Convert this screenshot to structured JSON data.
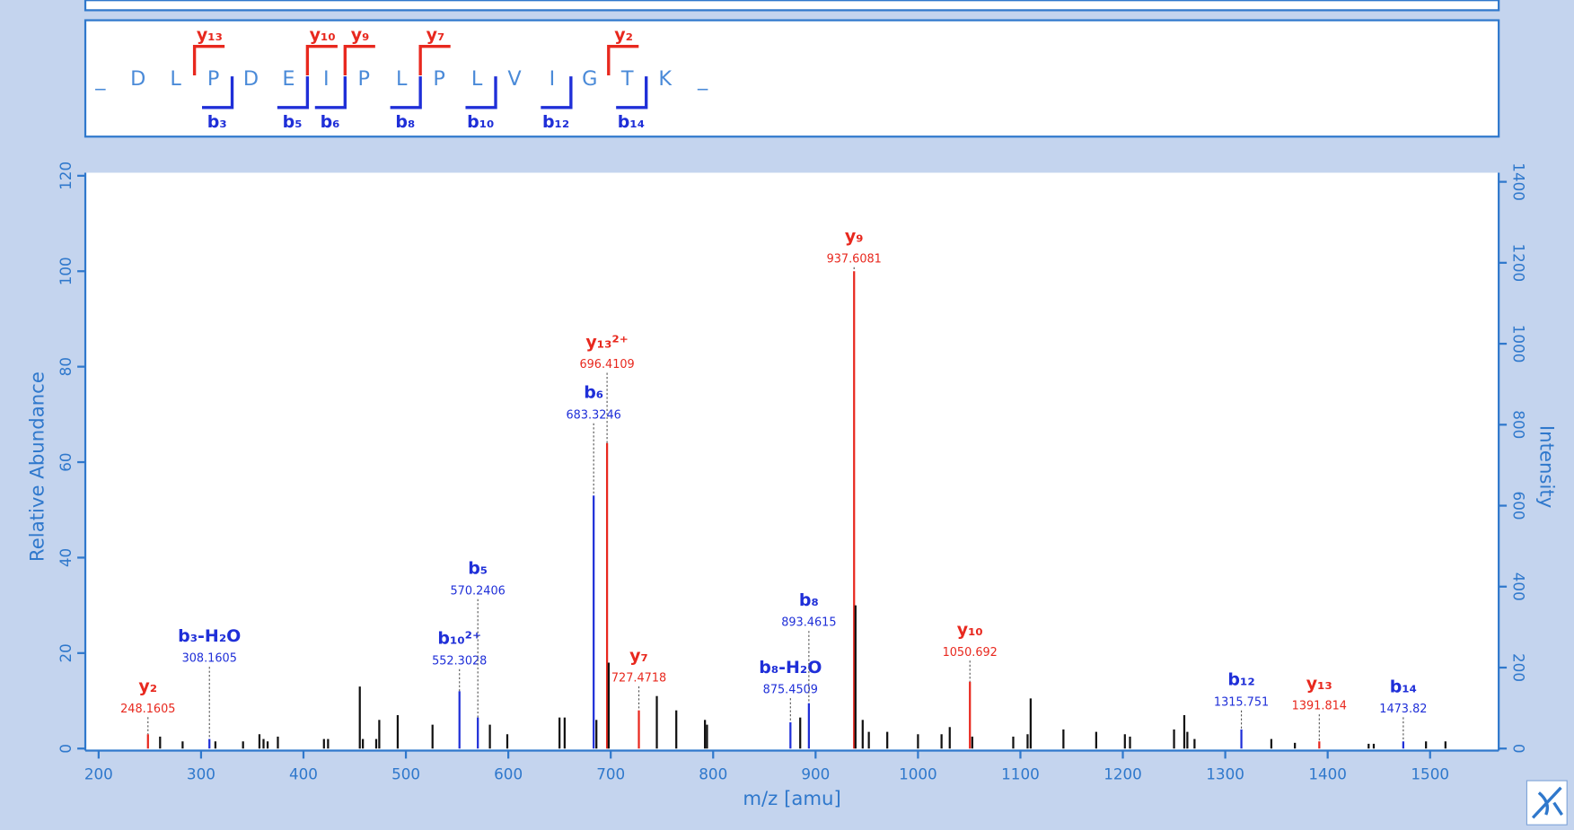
{
  "sequence": {
    "residues": [
      "_",
      "D",
      "L",
      "P",
      "D",
      "E",
      "I",
      "P",
      "L",
      "P",
      "L",
      "V",
      "I",
      "G",
      "T",
      "K",
      "_"
    ],
    "y_ions": [
      null,
      null,
      "y₁₃",
      null,
      null,
      "y₁₀",
      "y₉",
      null,
      "y₇",
      null,
      null,
      null,
      null,
      "y₂",
      null,
      null
    ],
    "b_ions": [
      null,
      null,
      null,
      "b₃",
      null,
      "b₅",
      "b₆",
      null,
      "b₈",
      null,
      "b₁₀",
      null,
      "b₁₂",
      null,
      "b₁₄",
      null
    ],
    "y_color": "#e8281e",
    "b_color": "#1f2fd8"
  },
  "chart_data": {
    "type": "stem",
    "xlabel": "m/z [amu]",
    "ylabel": "Relative Abundance",
    "y2label": "Intensity",
    "x": [
      248.1605,
      260,
      282,
      308.1605,
      314,
      341,
      357,
      361,
      365,
      375,
      420,
      424,
      455,
      458,
      471,
      474,
      492,
      526,
      552.3028,
      570.2406,
      582,
      599,
      650,
      655,
      683.3246,
      686,
      696.4109,
      698,
      727.4718,
      745,
      764,
      792,
      794,
      875.4509,
      885,
      893.4615,
      937.6081,
      939,
      946,
      952,
      970,
      1000,
      1023,
      1031,
      1050.692,
      1053,
      1093,
      1107,
      1110,
      1142,
      1174,
      1202,
      1207,
      1250,
      1260,
      1263,
      1270,
      1315.751,
      1345,
      1368,
      1391.814,
      1440,
      1445,
      1473.82,
      1496,
      1515
    ],
    "values": [
      3,
      2.5,
      1.5,
      2,
      1.5,
      1.5,
      3,
      2,
      1.5,
      2.5,
      2,
      2,
      13,
      2,
      2,
      6,
      7,
      5,
      12,
      6.5,
      5,
      3,
      6.5,
      6.5,
      53,
      6,
      64,
      18,
      8,
      11,
      8,
      6,
      5,
      5.5,
      6.5,
      9.5,
      100,
      30,
      6,
      3.5,
      3.5,
      3,
      3,
      4.5,
      14,
      2.5,
      2.5,
      3,
      10.5,
      4,
      3.5,
      3,
      2.5,
      4,
      7,
      3.5,
      2,
      4,
      2,
      1.2,
      1.5,
      1,
      1,
      1.5,
      1.5,
      1.5
    ],
    "colors": [
      "#e8281e",
      "#111111",
      "#111111",
      "#1f2fd8",
      "#111111",
      "#111111",
      "#111111",
      "#111111",
      "#111111",
      "#111111",
      "#111111",
      "#111111",
      "#111111",
      "#111111",
      "#111111",
      "#111111",
      "#111111",
      "#111111",
      "#1f2fd8",
      "#1f2fd8",
      "#111111",
      "#111111",
      "#111111",
      "#111111",
      "#1f2fd8",
      "#111111",
      "#e8281e",
      "#111111",
      "#e8281e",
      "#111111",
      "#111111",
      "#111111",
      "#111111",
      "#1f2fd8",
      "#111111",
      "#1f2fd8",
      "#e8281e",
      "#111111",
      "#111111",
      "#111111",
      "#111111",
      "#111111",
      "#111111",
      "#111111",
      "#e8281e",
      "#111111",
      "#111111",
      "#111111",
      "#111111",
      "#111111",
      "#111111",
      "#111111",
      "#111111",
      "#111111",
      "#111111",
      "#111111",
      "#111111",
      "#1f2fd8",
      "#111111",
      "#111111",
      "#e8281e",
      "#111111",
      "#111111",
      "#1f2fd8",
      "#111111",
      "#111111"
    ],
    "ion_labels": [
      "y₂",
      null,
      null,
      "b₃-H₂O",
      null,
      null,
      null,
      null,
      null,
      null,
      null,
      null,
      null,
      null,
      null,
      null,
      null,
      null,
      "b₁₀²⁺",
      "b₅",
      null,
      null,
      null,
      null,
      "b₆",
      null,
      "y₁₃²⁺",
      null,
      "y₇",
      null,
      null,
      null,
      null,
      "b₈-H₂O",
      null,
      "b₈",
      "y₉",
      null,
      null,
      null,
      null,
      null,
      null,
      null,
      "y₁₀",
      null,
      null,
      null,
      null,
      null,
      null,
      null,
      null,
      null,
      null,
      null,
      null,
      "b₁₂",
      null,
      null,
      "y₁₃",
      null,
      null,
      "b₁₄",
      null,
      null
    ],
    "mz_labels": [
      "248.1605",
      null,
      null,
      "308.1605",
      null,
      null,
      null,
      null,
      null,
      null,
      null,
      null,
      null,
      null,
      null,
      null,
      null,
      null,
      "552.3028",
      "570.2406",
      null,
      null,
      null,
      null,
      "683.3246",
      null,
      "696.4109",
      null,
      "727.4718",
      null,
      null,
      null,
      null,
      "875.4509",
      null,
      "893.4615",
      "937.6081",
      null,
      null,
      null,
      null,
      null,
      null,
      null,
      "1050.692",
      null,
      null,
      null,
      null,
      null,
      null,
      null,
      null,
      null,
      null,
      null,
      null,
      "1315.751",
      null,
      null,
      "1391.814",
      null,
      null,
      "1473.82",
      null,
      null
    ],
    "xlim": [
      187,
      1567
    ],
    "xticks": [
      200,
      300,
      400,
      500,
      600,
      700,
      800,
      900,
      1000,
      1100,
      1200,
      1300,
      1400,
      1500
    ],
    "ylim": [
      0,
      120
    ],
    "yticks": [
      0,
      20,
      40,
      60,
      80,
      100,
      120
    ],
    "y2lim": [
      0,
      1415
    ],
    "y2ticks": [
      0,
      200,
      400,
      600,
      800,
      1000,
      1200,
      1400
    ],
    "axis_color": "#2f78cc"
  }
}
